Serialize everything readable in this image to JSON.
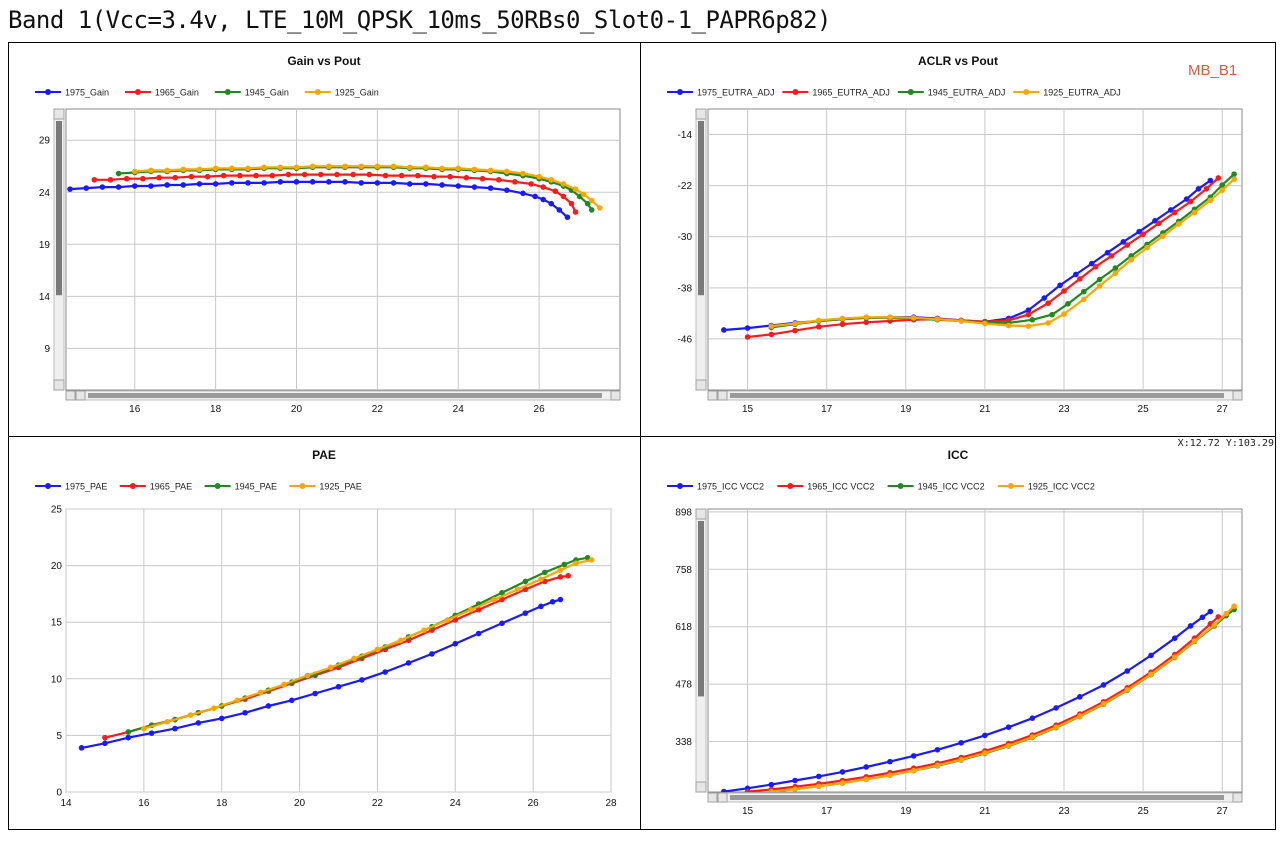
{
  "page": {
    "title": "Band 1(Vcc=3.4v, LTE_10M_QPSK_10ms_50RBs0_Slot0-1_PAPR6p82)",
    "corner_label": "MB_B1",
    "coord_readout": "X:12.72  Y:103.29"
  },
  "colors": {
    "1975": "#1a1aff",
    "1965": "#ff1a1a",
    "1945": "#1f8a1f",
    "1925": "#ffa500"
  },
  "chart_data": [
    {
      "id": "gain",
      "type": "line",
      "title": "Gain vs Pout",
      "xlabel": "",
      "ylabel": "",
      "xlim": [
        14.3,
        28.0
      ],
      "ylim": [
        5.0,
        32.0
      ],
      "xticks": [
        16,
        18,
        20,
        22,
        24,
        26
      ],
      "yticks": [
        9,
        14,
        19,
        24,
        29
      ],
      "grid": true,
      "legend": "top-left",
      "scrollbars": true,
      "series": [
        {
          "name": "1975_Gain",
          "key": "1975",
          "x": [
            14.4,
            14.8,
            15.2,
            15.6,
            16.0,
            16.4,
            16.8,
            17.2,
            17.6,
            18.0,
            18.4,
            18.8,
            19.2,
            19.6,
            20.0,
            20.4,
            20.8,
            21.2,
            21.6,
            22.0,
            22.4,
            22.8,
            23.2,
            23.6,
            24.0,
            24.4,
            24.8,
            25.2,
            25.6,
            25.9,
            26.1,
            26.3,
            26.5,
            26.7
          ],
          "y": [
            24.3,
            24.4,
            24.5,
            24.5,
            24.6,
            24.6,
            24.7,
            24.7,
            24.8,
            24.8,
            24.9,
            24.9,
            24.9,
            25.0,
            25.0,
            25.0,
            25.0,
            25.0,
            24.9,
            24.9,
            24.9,
            24.8,
            24.8,
            24.7,
            24.6,
            24.5,
            24.4,
            24.2,
            23.9,
            23.6,
            23.3,
            22.9,
            22.3,
            21.6
          ]
        },
        {
          "name": "1965_Gain",
          "key": "1965",
          "x": [
            15.0,
            15.4,
            15.8,
            16.2,
            16.6,
            17.0,
            17.4,
            17.8,
            18.2,
            18.6,
            19.0,
            19.4,
            19.8,
            20.2,
            20.6,
            21.0,
            21.4,
            21.8,
            22.2,
            22.6,
            23.0,
            23.4,
            23.8,
            24.2,
            24.6,
            25.0,
            25.4,
            25.8,
            26.1,
            26.4,
            26.6,
            26.8,
            26.9
          ],
          "y": [
            25.2,
            25.2,
            25.3,
            25.3,
            25.4,
            25.4,
            25.5,
            25.5,
            25.6,
            25.6,
            25.6,
            25.6,
            25.7,
            25.7,
            25.7,
            25.7,
            25.7,
            25.7,
            25.6,
            25.6,
            25.6,
            25.5,
            25.5,
            25.4,
            25.3,
            25.2,
            25.0,
            24.8,
            24.5,
            24.1,
            23.6,
            22.9,
            22.1
          ]
        },
        {
          "name": "1945_Gain",
          "key": "1945",
          "x": [
            15.6,
            16.0,
            16.4,
            16.8,
            17.2,
            17.6,
            18.0,
            18.4,
            18.8,
            19.2,
            19.6,
            20.0,
            20.4,
            20.8,
            21.2,
            21.6,
            22.0,
            22.4,
            22.8,
            23.2,
            23.6,
            24.0,
            24.4,
            24.8,
            25.2,
            25.6,
            26.0,
            26.3,
            26.6,
            26.8,
            27.0,
            27.2,
            27.3
          ],
          "y": [
            25.8,
            25.9,
            26.0,
            26.0,
            26.1,
            26.1,
            26.2,
            26.2,
            26.2,
            26.3,
            26.3,
            26.3,
            26.4,
            26.4,
            26.4,
            26.4,
            26.4,
            26.4,
            26.3,
            26.3,
            26.2,
            26.2,
            26.1,
            26.0,
            25.8,
            25.6,
            25.3,
            25.0,
            24.6,
            24.2,
            23.6,
            22.9,
            22.3
          ]
        },
        {
          "name": "1925_Gain",
          "key": "1925",
          "x": [
            16.0,
            16.4,
            16.8,
            17.2,
            17.6,
            18.0,
            18.4,
            18.8,
            19.2,
            19.6,
            20.0,
            20.4,
            20.8,
            21.2,
            21.6,
            22.0,
            22.4,
            22.8,
            23.2,
            23.6,
            24.0,
            24.4,
            24.8,
            25.2,
            25.6,
            26.0,
            26.3,
            26.6,
            26.9,
            27.1,
            27.3,
            27.5
          ],
          "y": [
            26.0,
            26.1,
            26.1,
            26.2,
            26.2,
            26.3,
            26.3,
            26.3,
            26.4,
            26.4,
            26.4,
            26.5,
            26.5,
            26.5,
            26.5,
            26.5,
            26.5,
            26.4,
            26.4,
            26.3,
            26.3,
            26.2,
            26.1,
            26.0,
            25.8,
            25.5,
            25.2,
            24.8,
            24.3,
            23.8,
            23.2,
            22.5
          ]
        }
      ]
    },
    {
      "id": "aclr",
      "type": "line",
      "title": "ACLR vs Pout",
      "xlabel": "",
      "ylabel": "",
      "xlim": [
        14.0,
        27.5
      ],
      "ylim": [
        -54.0,
        -10.0
      ],
      "xticks": [
        15,
        17,
        19,
        21,
        23,
        25,
        27
      ],
      "yticks": [
        -46,
        -38,
        -30,
        -22,
        -14
      ],
      "grid": true,
      "legend": "top-left",
      "scrollbars": true,
      "series": [
        {
          "name": "1975_EUTRA_ADJ",
          "key": "1975",
          "x": [
            14.4,
            15.0,
            15.6,
            16.2,
            16.8,
            17.4,
            18.0,
            18.6,
            19.2,
            19.8,
            20.4,
            21.0,
            21.6,
            22.1,
            22.5,
            22.9,
            23.3,
            23.7,
            24.1,
            24.5,
            24.9,
            25.3,
            25.7,
            26.1,
            26.4,
            26.7
          ],
          "y": [
            -44.6,
            -44.3,
            -43.9,
            -43.5,
            -43.2,
            -42.9,
            -42.7,
            -42.6,
            -42.6,
            -42.8,
            -43.1,
            -43.3,
            -42.8,
            -41.5,
            -39.6,
            -37.6,
            -35.9,
            -34.2,
            -32.5,
            -30.8,
            -29.2,
            -27.5,
            -25.8,
            -24.1,
            -22.5,
            -21.2
          ]
        },
        {
          "name": "1965_EUTRA_ADJ",
          "key": "1965",
          "x": [
            15.0,
            15.6,
            16.2,
            16.8,
            17.4,
            18.0,
            18.6,
            19.2,
            19.8,
            20.4,
            21.0,
            21.6,
            22.1,
            22.6,
            23.0,
            23.4,
            23.8,
            24.2,
            24.6,
            25.0,
            25.4,
            25.8,
            26.2,
            26.6,
            26.9
          ],
          "y": [
            -45.7,
            -45.3,
            -44.7,
            -44.1,
            -43.7,
            -43.4,
            -43.2,
            -43.0,
            -42.9,
            -43.1,
            -43.3,
            -43.1,
            -42.2,
            -40.4,
            -38.5,
            -36.6,
            -34.7,
            -33.0,
            -31.3,
            -29.6,
            -27.9,
            -26.2,
            -24.5,
            -22.5,
            -20.8
          ]
        },
        {
          "name": "1945_EUTRA_ADJ",
          "key": "1945",
          "x": [
            15.6,
            16.2,
            16.8,
            17.4,
            18.0,
            18.6,
            19.2,
            19.8,
            20.4,
            21.0,
            21.6,
            22.2,
            22.7,
            23.1,
            23.5,
            23.9,
            24.3,
            24.7,
            25.1,
            25.5,
            25.9,
            26.3,
            26.7,
            27.0,
            27.3
          ],
          "y": [
            -44.2,
            -43.7,
            -43.2,
            -42.9,
            -42.7,
            -42.7,
            -42.8,
            -43.0,
            -43.2,
            -43.4,
            -43.5,
            -43.0,
            -42.2,
            -40.5,
            -38.6,
            -36.7,
            -34.9,
            -33.0,
            -31.2,
            -29.4,
            -27.6,
            -25.7,
            -23.8,
            -21.9,
            -20.2
          ]
        },
        {
          "name": "1925_EUTRA_ADJ",
          "key": "1925",
          "x": [
            15.6,
            16.2,
            16.8,
            17.4,
            18.0,
            18.6,
            19.2,
            19.8,
            20.4,
            21.0,
            21.6,
            22.1,
            22.6,
            23.0,
            23.5,
            23.9,
            24.3,
            24.7,
            25.1,
            25.5,
            25.9,
            26.3,
            26.7,
            27.0,
            27.3
          ],
          "y": [
            -44.0,
            -43.6,
            -43.1,
            -42.8,
            -42.6,
            -42.6,
            -42.7,
            -42.9,
            -43.2,
            -43.6,
            -43.9,
            -44.0,
            -43.5,
            -42.1,
            -39.8,
            -37.7,
            -35.7,
            -33.6,
            -31.7,
            -29.9,
            -28.0,
            -26.2,
            -24.3,
            -22.7,
            -21.0
          ]
        }
      ]
    },
    {
      "id": "pae",
      "type": "line",
      "title": "PAE",
      "xlabel": "",
      "ylabel": "",
      "xlim": [
        14.0,
        28.0
      ],
      "ylim": [
        0,
        25
      ],
      "xticks": [
        14,
        16,
        18,
        20,
        22,
        24,
        26,
        28
      ],
      "yticks": [
        0,
        5,
        10,
        15,
        20,
        25
      ],
      "grid": true,
      "legend": "top-left",
      "scrollbars": false,
      "series": [
        {
          "name": "1975_PAE",
          "key": "1975",
          "x": [
            14.4,
            15.0,
            15.6,
            16.2,
            16.8,
            17.4,
            18.0,
            18.6,
            19.2,
            19.8,
            20.4,
            21.0,
            21.6,
            22.2,
            22.8,
            23.4,
            24.0,
            24.6,
            25.2,
            25.8,
            26.2,
            26.5,
            26.7
          ],
          "y": [
            3.9,
            4.3,
            4.8,
            5.2,
            5.6,
            6.1,
            6.5,
            7.0,
            7.6,
            8.1,
            8.7,
            9.3,
            9.9,
            10.6,
            11.4,
            12.2,
            13.1,
            14.0,
            14.9,
            15.8,
            16.4,
            16.8,
            17.0
          ]
        },
        {
          "name": "1965_PAE",
          "key": "1965",
          "x": [
            15.0,
            15.6,
            16.2,
            16.8,
            17.4,
            18.0,
            18.6,
            19.2,
            19.8,
            20.4,
            21.0,
            21.6,
            22.2,
            22.8,
            23.4,
            24.0,
            24.6,
            25.2,
            25.8,
            26.3,
            26.7,
            26.9
          ],
          "y": [
            4.8,
            5.3,
            5.9,
            6.4,
            7.0,
            7.6,
            8.2,
            8.9,
            9.6,
            10.3,
            11.0,
            11.8,
            12.6,
            13.4,
            14.3,
            15.2,
            16.1,
            17.0,
            17.9,
            18.6,
            19.0,
            19.1
          ]
        },
        {
          "name": "1945_PAE",
          "key": "1945",
          "x": [
            15.6,
            16.2,
            16.8,
            17.4,
            18.0,
            18.6,
            19.2,
            19.8,
            20.4,
            21.0,
            21.6,
            22.2,
            22.8,
            23.4,
            24.0,
            24.6,
            25.2,
            25.8,
            26.3,
            26.8,
            27.1,
            27.4
          ],
          "y": [
            5.3,
            5.9,
            6.4,
            7.0,
            7.6,
            8.3,
            9.0,
            9.7,
            10.4,
            11.2,
            12.0,
            12.8,
            13.7,
            14.6,
            15.6,
            16.6,
            17.6,
            18.6,
            19.4,
            20.1,
            20.5,
            20.7
          ]
        },
        {
          "name": "1925_PAE",
          "key": "1925",
          "x": [
            16.0,
            16.6,
            17.2,
            17.8,
            18.4,
            19.0,
            19.6,
            20.2,
            20.8,
            21.4,
            22.0,
            22.6,
            23.2,
            23.8,
            24.4,
            25.0,
            25.6,
            26.2,
            26.7,
            27.1,
            27.5
          ],
          "y": [
            5.6,
            6.2,
            6.8,
            7.4,
            8.1,
            8.8,
            9.5,
            10.3,
            11.0,
            11.8,
            12.6,
            13.4,
            14.3,
            15.2,
            16.1,
            17.0,
            17.9,
            18.8,
            19.6,
            20.2,
            20.5
          ]
        }
      ]
    },
    {
      "id": "icc",
      "type": "line",
      "title": "ICC",
      "xlabel": "",
      "ylabel": "",
      "xlim": [
        14.0,
        27.5
      ],
      "ylim": [
        215,
        905
      ],
      "xticks": [
        15,
        17,
        19,
        21,
        23,
        25,
        27
      ],
      "yticks": [
        338,
        478,
        618,
        758,
        898
      ],
      "grid": true,
      "legend": "top-left",
      "scrollbars": true,
      "series": [
        {
          "name": "1975_ICC VCC2",
          "key": "1975",
          "x": [
            14.4,
            15.0,
            15.6,
            16.2,
            16.8,
            17.4,
            18.0,
            18.6,
            19.2,
            19.8,
            20.4,
            21.0,
            21.6,
            22.2,
            22.8,
            23.4,
            24.0,
            24.6,
            25.2,
            25.8,
            26.2,
            26.5,
            26.7
          ],
          "y": [
            216,
            224,
            233,
            243,
            253,
            264,
            276,
            289,
            303,
            318,
            335,
            353,
            373,
            395,
            420,
            447,
            476,
            510,
            548,
            590,
            620,
            641,
            655
          ]
        },
        {
          "name": "1965_ICC VCC2",
          "key": "1965",
          "x": [
            15.0,
            15.6,
            16.2,
            16.8,
            17.4,
            18.0,
            18.6,
            19.2,
            19.8,
            20.4,
            21.0,
            21.6,
            22.2,
            22.8,
            23.4,
            24.0,
            24.6,
            25.2,
            25.8,
            26.3,
            26.7,
            26.9
          ],
          "y": [
            216,
            221,
            228,
            235,
            243,
            252,
            262,
            273,
            285,
            299,
            315,
            333,
            354,
            378,
            405,
            435,
            469,
            507,
            550,
            590,
            625,
            642
          ]
        },
        {
          "name": "1945_ICC VCC2",
          "key": "1945",
          "x": [
            15.6,
            16.2,
            16.8,
            17.4,
            18.0,
            18.6,
            19.2,
            19.8,
            20.4,
            21.0,
            21.6,
            22.2,
            22.8,
            23.4,
            24.0,
            24.6,
            25.2,
            25.8,
            26.3,
            26.8,
            27.1,
            27.3
          ],
          "y": [
            216,
            222,
            229,
            237,
            246,
            256,
            267,
            279,
            293,
            309,
            327,
            348,
            372,
            399,
            429,
            463,
            501,
            543,
            582,
            620,
            645,
            660
          ]
        },
        {
          "name": "1925_ICC VCC2",
          "key": "1925",
          "x": [
            15.6,
            16.2,
            16.8,
            17.4,
            18.0,
            18.6,
            19.2,
            19.8,
            20.4,
            21.0,
            21.6,
            22.2,
            22.8,
            23.4,
            24.0,
            24.6,
            25.2,
            25.8,
            26.3,
            26.8,
            27.1,
            27.3
          ],
          "y": [
            216,
            222,
            229,
            237,
            246,
            256,
            267,
            280,
            294,
            310,
            328,
            349,
            373,
            400,
            430,
            464,
            502,
            544,
            583,
            622,
            650,
            668
          ]
        }
      ]
    }
  ]
}
